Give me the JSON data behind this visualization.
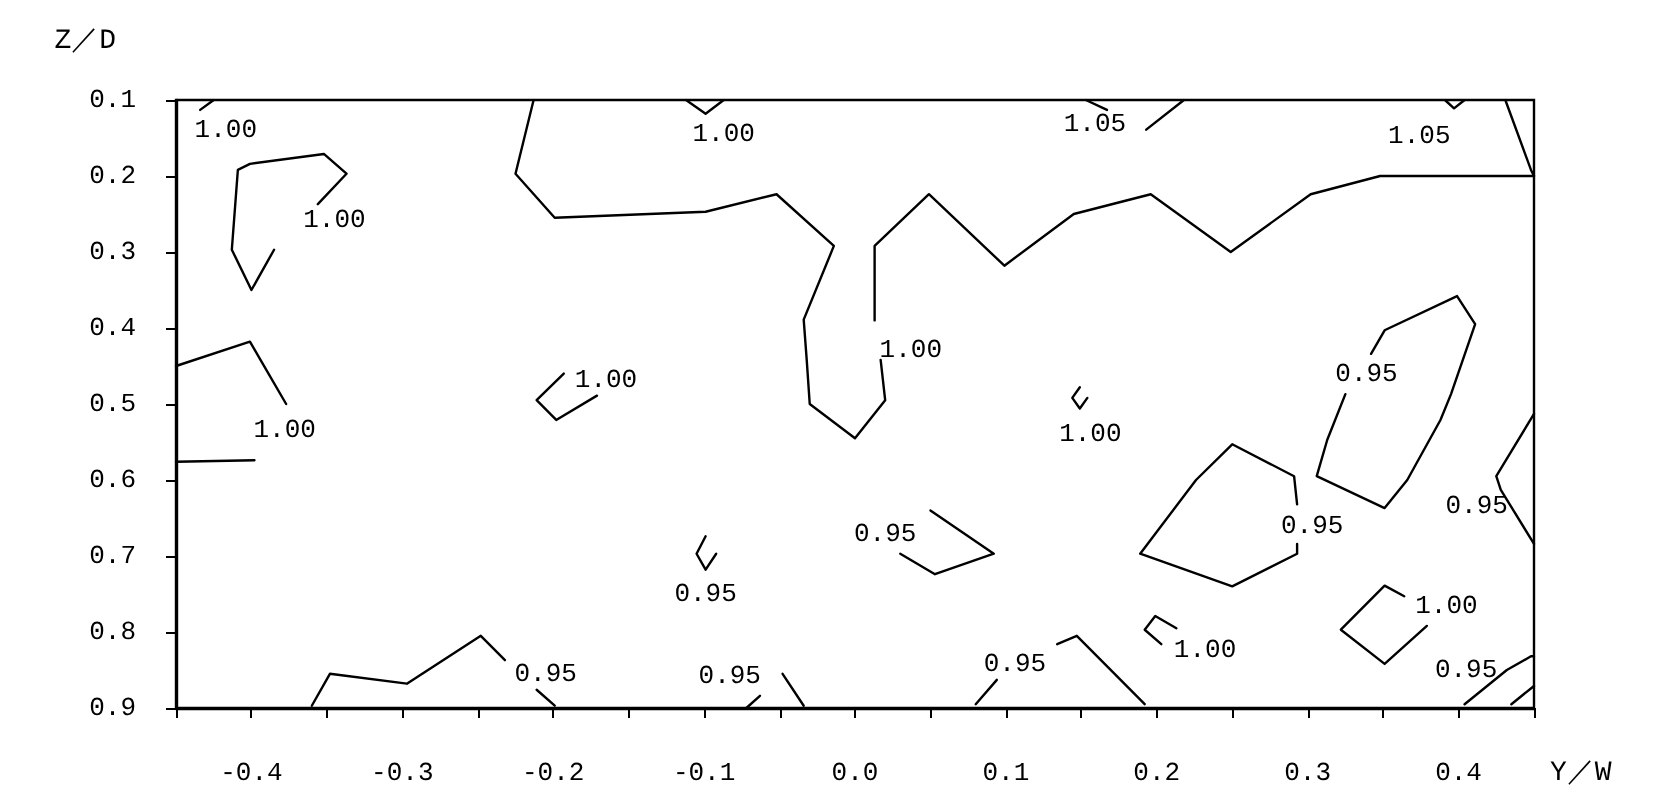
{
  "chart_data": {
    "type": "line",
    "xlabel": "Y／W",
    "ylabel": "Z／D",
    "xlim": [
      -0.45,
      0.45
    ],
    "ylim": [
      0.9,
      0.1
    ],
    "xticks": [
      {
        "value": -0.45,
        "label": null
      },
      -0.4,
      {
        "value": -0.35,
        "label": null
      },
      -0.3,
      {
        "value": -0.25,
        "label": null
      },
      -0.2,
      {
        "value": -0.15,
        "label": null
      },
      -0.1,
      {
        "value": -0.05,
        "label": null
      },
      {
        "value": 0,
        "label": "0.0"
      },
      {
        "value": 0.05,
        "label": null
      },
      0.1,
      {
        "value": 0.15,
        "label": null
      },
      0.2,
      {
        "value": 0.25,
        "label": null
      },
      0.3,
      {
        "value": 0.35,
        "label": null
      },
      0.4,
      {
        "value": 0.45,
        "label": null
      }
    ],
    "yticks": [
      0.1,
      0.2,
      0.3,
      0.4,
      0.5,
      0.6,
      0.7,
      0.8,
      0.9
    ],
    "grid": false,
    "marker": "none",
    "line_style": "solid",
    "series": [
      {
        "color": "#000000",
        "x": [
          -0.434,
          -0.425
        ],
        "values": [
          0.113,
          0.1
        ]
      },
      {
        "color": "#000000",
        "x": [
          -0.356,
          -0.337,
          -0.352,
          -0.401,
          -0.409,
          -0.413,
          -0.4,
          -0.385
        ],
        "values": [
          0.237,
          0.197,
          0.171,
          0.184,
          0.192,
          0.297,
          0.35,
          0.297
        ]
      },
      {
        "color": "#000000",
        "x": [
          -0.45,
          -0.401,
          -0.394,
          -0.377
        ],
        "values": [
          0.45,
          0.418,
          0.442,
          0.5
        ]
      },
      {
        "color": "#000000",
        "x": [
          -0.398,
          -0.45
        ],
        "values": [
          0.574,
          0.576
        ]
      },
      {
        "color": "#000000",
        "x": [
          -0.213,
          -0.225,
          -0.199,
          -0.099,
          -0.052,
          -0.014,
          -0.034,
          -0.032,
          -0.03,
          0.0,
          0.02,
          0.017
        ],
        "values": [
          0.1,
          0.197,
          0.255,
          0.247,
          0.224,
          0.292,
          0.389,
          0.442,
          0.5,
          0.545,
          0.495,
          0.442
        ]
      },
      {
        "color": "#000000",
        "x": [
          0.013,
          0.013,
          0.049,
          0.099,
          0.145,
          0.196,
          0.249,
          0.302,
          0.348,
          0.45
        ],
        "values": [
          0.39,
          0.292,
          0.224,
          0.318,
          0.25,
          0.224,
          0.3,
          0.224,
          0.2,
          0.2
        ]
      },
      {
        "color": "#000000",
        "x": [
          -0.112,
          -0.099,
          -0.087
        ],
        "values": [
          0.1,
          0.118,
          0.1
        ]
      },
      {
        "color": "#000000",
        "x": [
          0.153,
          0.167
        ],
        "values": [
          0.1,
          0.113
        ]
      },
      {
        "color": "#000000",
        "x": [
          0.193,
          0.218
        ],
        "values": [
          0.139,
          0.1
        ]
      },
      {
        "color": "#000000",
        "x": [
          0.391,
          0.397,
          0.404
        ],
        "values": [
          0.1,
          0.111,
          0.1
        ]
      },
      {
        "color": "#000000",
        "x": [
          0.431,
          0.448,
          0.45
        ],
        "values": [
          0.1,
          0.192,
          0.2
        ]
      },
      {
        "color": "#000000",
        "x": [
          -0.193,
          -0.211,
          -0.198,
          -0.171
        ],
        "values": [
          0.46,
          0.495,
          0.521,
          0.489
        ]
      },
      {
        "color": "#000000",
        "x": [
          -0.099,
          -0.105,
          -0.099,
          -0.092
        ],
        "values": [
          0.674,
          0.697,
          0.718,
          0.697
        ]
      },
      {
        "color": "#000000",
        "x": [
          -0.36,
          -0.348,
          -0.297,
          -0.248,
          -0.232
        ],
        "values": [
          0.897,
          0.855,
          0.868,
          0.805,
          0.837
        ]
      },
      {
        "color": "#000000",
        "x": [
          -0.211,
          -0.199
        ],
        "values": [
          0.876,
          0.897
        ]
      },
      {
        "color": "#000000",
        "x": [
          -0.072,
          -0.063
        ],
        "values": [
          0.9,
          0.884
        ]
      },
      {
        "color": "#000000",
        "x": [
          -0.048,
          -0.034
        ],
        "values": [
          0.855,
          0.897
        ]
      },
      {
        "color": "#000000",
        "x": [
          0.05,
          0.092,
          0.053,
          0.03
        ],
        "values": [
          0.64,
          0.697,
          0.724,
          0.697
        ]
      },
      {
        "color": "#000000",
        "x": [
          0.149,
          0.144,
          0.149,
          0.154
        ],
        "values": [
          0.478,
          0.492,
          0.506,
          0.492
        ]
      },
      {
        "color": "#000000",
        "x": [
          0.08,
          0.094
        ],
        "values": [
          0.895,
          0.863
        ]
      },
      {
        "color": "#000000",
        "x": [
          0.134,
          0.147,
          0.192
        ],
        "values": [
          0.816,
          0.805,
          0.895
        ]
      },
      {
        "color": "#000000",
        "x": [
          0.293,
          0.291,
          0.25,
          0.226,
          0.189,
          0.25,
          0.293,
          0.293
        ],
        "values": [
          0.632,
          0.595,
          0.553,
          0.6,
          0.697,
          0.74,
          0.697,
          0.684
        ]
      },
      {
        "color": "#000000",
        "x": [
          0.342,
          0.351,
          0.399,
          0.411,
          0.395,
          0.388,
          0.366,
          0.351,
          0.306,
          0.313,
          0.325
        ],
        "values": [
          0.434,
          0.403,
          0.358,
          0.395,
          0.487,
          0.521,
          0.6,
          0.637,
          0.595,
          0.547,
          0.487
        ]
      },
      {
        "color": "#000000",
        "x": [
          0.45,
          0.425,
          0.428,
          0.45
        ],
        "values": [
          0.513,
          0.595,
          0.613,
          0.684
        ]
      },
      {
        "color": "#000000",
        "x": [
          0.364,
          0.351,
          0.322,
          0.351,
          0.379
        ],
        "values": [
          0.753,
          0.739,
          0.797,
          0.842,
          0.792
        ]
      },
      {
        "color": "#000000",
        "x": [
          0.213,
          0.199,
          0.192,
          0.203
        ],
        "values": [
          0.795,
          0.779,
          0.797,
          0.816
        ]
      },
      {
        "color": "#000000",
        "x": [
          0.404,
          0.432,
          0.448,
          0.45
        ],
        "values": [
          0.895,
          0.85,
          0.832,
          0.832
        ]
      },
      {
        "color": "#000000",
        "x": [
          0.435,
          0.45
        ],
        "values": [
          0.895,
          0.871
        ]
      }
    ],
    "annotations": [
      {
        "text": "1.00",
        "x": -0.417,
        "y": 0.139
      },
      {
        "text": "1.00",
        "x": -0.345,
        "y": 0.258
      },
      {
        "text": "1.00",
        "x": -0.087,
        "y": 0.145
      },
      {
        "text": "1.05",
        "x": 0.159,
        "y": 0.132
      },
      {
        "text": "1.05",
        "x": 0.374,
        "y": 0.147
      },
      {
        "text": "1.00",
        "x": -0.378,
        "y": 0.534
      },
      {
        "text": "1.00",
        "x": -0.165,
        "y": 0.468
      },
      {
        "text": "1.00",
        "x": 0.037,
        "y": 0.429
      },
      {
        "text": "1.00",
        "x": 0.156,
        "y": 0.539
      },
      {
        "text": "0.95",
        "x": 0.339,
        "y": 0.46
      },
      {
        "text": "0.95",
        "x": 0.02,
        "y": 0.671
      },
      {
        "text": "0.95",
        "x": -0.099,
        "y": 0.75
      },
      {
        "text": "0.95",
        "x": 0.303,
        "y": 0.66
      },
      {
        "text": "0.95",
        "x": 0.412,
        "y": 0.634
      },
      {
        "text": "1.00",
        "x": 0.392,
        "y": 0.766
      },
      {
        "text": "1.00",
        "x": 0.232,
        "y": 0.824
      },
      {
        "text": "0.95",
        "x": -0.205,
        "y": 0.855
      },
      {
        "text": "0.95",
        "x": -0.083,
        "y": 0.858
      },
      {
        "text": "0.95",
        "x": 0.106,
        "y": 0.842
      },
      {
        "text": "0.95",
        "x": 0.405,
        "y": 0.85
      }
    ]
  }
}
